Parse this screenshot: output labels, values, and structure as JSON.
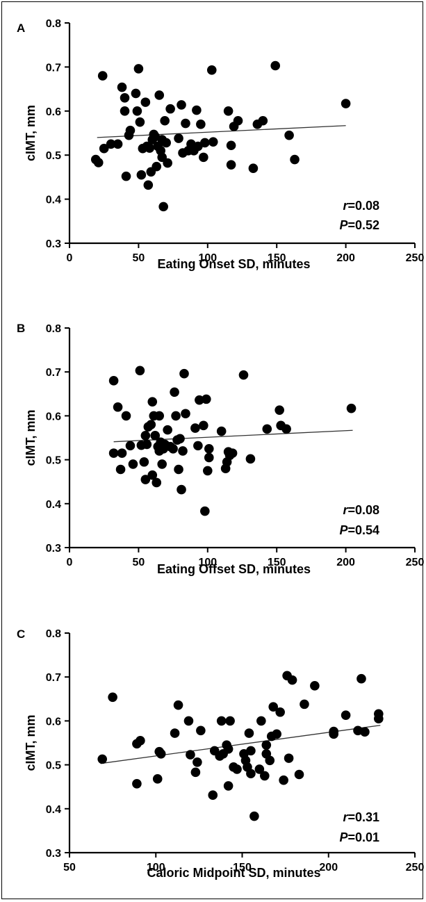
{
  "chart_data": [
    {
      "type": "scatter",
      "panel": "A",
      "xlabel": "Eating Onset SD, minutes",
      "ylabel": "cIMT, mm",
      "xlim": [
        0,
        250
      ],
      "ylim": [
        0.3,
        0.8
      ],
      "xticks": [
        "0",
        "50",
        "100",
        "150",
        "200",
        "250"
      ],
      "yticks": [
        "0.3",
        "0.4",
        "0.5",
        "0.6",
        "0.7",
        "0.8"
      ],
      "stat_r_label": "r",
      "stat_r_value": "=0.08",
      "stat_p_label": "P",
      "stat_p_value": "=0.52",
      "trend": {
        "x": [
          20,
          200
        ],
        "y": [
          0.54,
          0.567
        ]
      },
      "points": [
        [
          19,
          0.49
        ],
        [
          21,
          0.483
        ],
        [
          24,
          0.68
        ],
        [
          25,
          0.515
        ],
        [
          30,
          0.525
        ],
        [
          35,
          0.525
        ],
        [
          38,
          0.654
        ],
        [
          40,
          0.63
        ],
        [
          40,
          0.6
        ],
        [
          41,
          0.452
        ],
        [
          43,
          0.545
        ],
        [
          44,
          0.556
        ],
        [
          48,
          0.64
        ],
        [
          49,
          0.6
        ],
        [
          50,
          0.696
        ],
        [
          51,
          0.575
        ],
        [
          52,
          0.455
        ],
        [
          53,
          0.515
        ],
        [
          55,
          0.62
        ],
        [
          56,
          0.52
        ],
        [
          57,
          0.432
        ],
        [
          58,
          0.516
        ],
        [
          59,
          0.462
        ],
        [
          60,
          0.535
        ],
        [
          61,
          0.547
        ],
        [
          62,
          0.542
        ],
        [
          63,
          0.474
        ],
        [
          64,
          0.52
        ],
        [
          65,
          0.636
        ],
        [
          66,
          0.51
        ],
        [
          67,
          0.535
        ],
        [
          67,
          0.495
        ],
        [
          68,
          0.383
        ],
        [
          69,
          0.578
        ],
        [
          70,
          0.528
        ],
        [
          71,
          0.482
        ],
        [
          73,
          0.605
        ],
        [
          79,
          0.538
        ],
        [
          81,
          0.614
        ],
        [
          82,
          0.505
        ],
        [
          84,
          0.572
        ],
        [
          86,
          0.51
        ],
        [
          88,
          0.525
        ],
        [
          90,
          0.51
        ],
        [
          92,
          0.602
        ],
        [
          93,
          0.52
        ],
        [
          95,
          0.57
        ],
        [
          97,
          0.495
        ],
        [
          98,
          0.528
        ],
        [
          103,
          0.693
        ],
        [
          104,
          0.53
        ],
        [
          115,
          0.6
        ],
        [
          117,
          0.522
        ],
        [
          117,
          0.478
        ],
        [
          119,
          0.565
        ],
        [
          122,
          0.578
        ],
        [
          133,
          0.47
        ],
        [
          136,
          0.57
        ],
        [
          140,
          0.578
        ],
        [
          149,
          0.703
        ],
        [
          159,
          0.545
        ],
        [
          163,
          0.49
        ],
        [
          200,
          0.617
        ]
      ]
    },
    {
      "type": "scatter",
      "panel": "B",
      "xlabel": "Eating Offset SD, minutes",
      "ylabel": "cIMT, mm",
      "xlim": [
        0,
        250
      ],
      "ylim": [
        0.3,
        0.8
      ],
      "xticks": [
        "0",
        "50",
        "100",
        "150",
        "200",
        "250"
      ],
      "yticks": [
        "0.3",
        "0.4",
        "0.5",
        "0.6",
        "0.7",
        "0.8"
      ],
      "stat_r_label": "r",
      "stat_r_value": "=0.08",
      "stat_p_label": "P",
      "stat_p_value": "=0.54",
      "trend": {
        "x": [
          32,
          205
        ],
        "y": [
          0.541,
          0.567
        ]
      },
      "points": [
        [
          32,
          0.68
        ],
        [
          32,
          0.515
        ],
        [
          35,
          0.62
        ],
        [
          37,
          0.478
        ],
        [
          38,
          0.515
        ],
        [
          41,
          0.6
        ],
        [
          44,
          0.532
        ],
        [
          46,
          0.49
        ],
        [
          51,
          0.703
        ],
        [
          52,
          0.533
        ],
        [
          54,
          0.495
        ],
        [
          55,
          0.555
        ],
        [
          55,
          0.455
        ],
        [
          56,
          0.535
        ],
        [
          57,
          0.575
        ],
        [
          59,
          0.58
        ],
        [
          60,
          0.632
        ],
        [
          60,
          0.465
        ],
        [
          61,
          0.6
        ],
        [
          62,
          0.555
        ],
        [
          63,
          0.448
        ],
        [
          64,
          0.53
        ],
        [
          65,
          0.6
        ],
        [
          65,
          0.52
        ],
        [
          66,
          0.54
        ],
        [
          67,
          0.49
        ],
        [
          68,
          0.525
        ],
        [
          69,
          0.535
        ],
        [
          71,
          0.568
        ],
        [
          73,
          0.53
        ],
        [
          75,
          0.525
        ],
        [
          76,
          0.654
        ],
        [
          77,
          0.6
        ],
        [
          78,
          0.545
        ],
        [
          79,
          0.478
        ],
        [
          80,
          0.548
        ],
        [
          81,
          0.432
        ],
        [
          82,
          0.52
        ],
        [
          83,
          0.696
        ],
        [
          84,
          0.605
        ],
        [
          91,
          0.572
        ],
        [
          93,
          0.532
        ],
        [
          94,
          0.636
        ],
        [
          97,
          0.578
        ],
        [
          98,
          0.383
        ],
        [
          99,
          0.638
        ],
        [
          100,
          0.475
        ],
        [
          101,
          0.505
        ],
        [
          101,
          0.525
        ],
        [
          110,
          0.565
        ],
        [
          113,
          0.48
        ],
        [
          114,
          0.495
        ],
        [
          115,
          0.518
        ],
        [
          116,
          0.51
        ],
        [
          118,
          0.515
        ],
        [
          126,
          0.693
        ],
        [
          131,
          0.502
        ],
        [
          143,
          0.57
        ],
        [
          152,
          0.613
        ],
        [
          153,
          0.578
        ],
        [
          157,
          0.57
        ],
        [
          204,
          0.617
        ]
      ]
    },
    {
      "type": "scatter",
      "panel": "C",
      "xlabel": "Caloric Midpoint SD, minutes",
      "ylabel": "cIMT, mm",
      "xlim": [
        50,
        250
      ],
      "ylim": [
        0.3,
        0.8
      ],
      "xticks": [
        "50",
        "100",
        "150",
        "200",
        "250"
      ],
      "yticks": [
        "0.3",
        "0.4",
        "0.5",
        "0.6",
        "0.7",
        "0.8"
      ],
      "stat_r_label": "r",
      "stat_r_value": "=0.31",
      "stat_p_label": "P",
      "stat_p_value": "=0.01",
      "trend": {
        "x": [
          68,
          230
        ],
        "y": [
          0.503,
          0.59
        ]
      },
      "points": [
        [
          69,
          0.513
        ],
        [
          75,
          0.654
        ],
        [
          89,
          0.548
        ],
        [
          89,
          0.457
        ],
        [
          91,
          0.555
        ],
        [
          101,
          0.468
        ],
        [
          102,
          0.53
        ],
        [
          103,
          0.525
        ],
        [
          111,
          0.572
        ],
        [
          113,
          0.636
        ],
        [
          119,
          0.6
        ],
        [
          120,
          0.523
        ],
        [
          123,
          0.483
        ],
        [
          124,
          0.506
        ],
        [
          126,
          0.578
        ],
        [
          133,
          0.431
        ],
        [
          134,
          0.532
        ],
        [
          137,
          0.52
        ],
        [
          138,
          0.6
        ],
        [
          139,
          0.525
        ],
        [
          141,
          0.545
        ],
        [
          142,
          0.452
        ],
        [
          142,
          0.536
        ],
        [
          143,
          0.6
        ],
        [
          145,
          0.495
        ],
        [
          147,
          0.49
        ],
        [
          151,
          0.525
        ],
        [
          152,
          0.51
        ],
        [
          153,
          0.495
        ],
        [
          154,
          0.572
        ],
        [
          155,
          0.48
        ],
        [
          155,
          0.532
        ],
        [
          157,
          0.383
        ],
        [
          160,
          0.49
        ],
        [
          161,
          0.6
        ],
        [
          163,
          0.475
        ],
        [
          164,
          0.525
        ],
        [
          164,
          0.545
        ],
        [
          166,
          0.51
        ],
        [
          167,
          0.565
        ],
        [
          168,
          0.632
        ],
        [
          170,
          0.57
        ],
        [
          172,
          0.62
        ],
        [
          174,
          0.465
        ],
        [
          176,
          0.703
        ],
        [
          177,
          0.515
        ],
        [
          179,
          0.693
        ],
        [
          183,
          0.478
        ],
        [
          186,
          0.638
        ],
        [
          192,
          0.68
        ],
        [
          203,
          0.576
        ],
        [
          203,
          0.57
        ],
        [
          210,
          0.613
        ],
        [
          217,
          0.578
        ],
        [
          219,
          0.696
        ],
        [
          221,
          0.575
        ],
        [
          229,
          0.616
        ],
        [
          229,
          0.605
        ]
      ]
    }
  ]
}
